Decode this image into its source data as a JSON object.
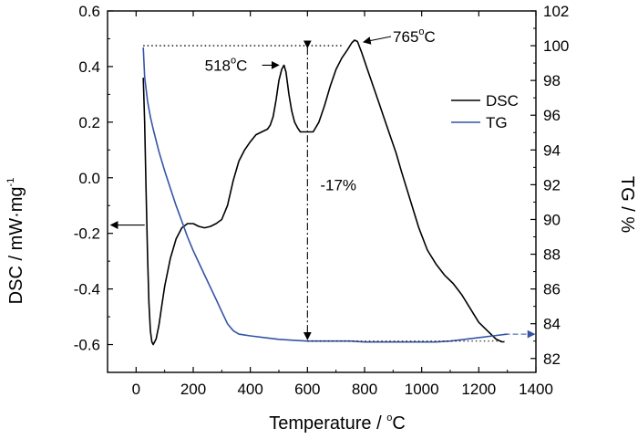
{
  "chart_data": {
    "type": "line",
    "xlabel": "Temperature / ",
    "xlabel_unit": "C",
    "xlabel_unit_sup": "o",
    "ylabel_left": "DSC / mW·mg",
    "ylabel_left_sup": "-1",
    "ylabel_right": "TG / %",
    "xlim": [
      -100,
      1400
    ],
    "ylim_left": [
      -0.7,
      0.6
    ],
    "ylim_right": [
      81.2,
      102
    ],
    "x_ticks": [
      0,
      200,
      400,
      600,
      800,
      1000,
      1200,
      1400
    ],
    "y_left_ticks": [
      -0.6,
      -0.4,
      -0.2,
      0.0,
      0.2,
      0.4,
      0.6
    ],
    "y_left_tick_labels": [
      "-0.6",
      "-0.4",
      "-0.2",
      "0.0",
      "0.2",
      "0.4",
      "0.6"
    ],
    "y_right_ticks": [
      82,
      84,
      86,
      88,
      90,
      92,
      94,
      96,
      98,
      100,
      102
    ],
    "grid": false,
    "legend_position": "top-right",
    "series": [
      {
        "name": "DSC",
        "axis": "left",
        "color": "#000000",
        "x": [
          25,
          30,
          35,
          40,
          45,
          50,
          55,
          60,
          70,
          80,
          90,
          100,
          120,
          140,
          160,
          180,
          200,
          220,
          240,
          260,
          280,
          300,
          320,
          340,
          360,
          380,
          400,
          420,
          440,
          460,
          470,
          480,
          490,
          500,
          510,
          518,
          525,
          535,
          545,
          555,
          565,
          575,
          585,
          600,
          620,
          640,
          660,
          680,
          700,
          720,
          740,
          755,
          765,
          775,
          790,
          810,
          830,
          850,
          870,
          890,
          910,
          930,
          960,
          990,
          1020,
          1050,
          1080,
          1110,
          1140,
          1170,
          1200,
          1220,
          1240,
          1250,
          1260,
          1270,
          1280,
          1290
        ],
        "y": [
          0.36,
          0.2,
          -0.05,
          -0.28,
          -0.45,
          -0.55,
          -0.59,
          -0.6,
          -0.58,
          -0.53,
          -0.46,
          -0.39,
          -0.29,
          -0.22,
          -0.18,
          -0.165,
          -0.165,
          -0.175,
          -0.18,
          -0.175,
          -0.165,
          -0.15,
          -0.1,
          -0.01,
          0.06,
          0.1,
          0.13,
          0.155,
          0.165,
          0.175,
          0.19,
          0.22,
          0.28,
          0.35,
          0.39,
          0.405,
          0.38,
          0.3,
          0.24,
          0.2,
          0.18,
          0.165,
          0.165,
          0.165,
          0.165,
          0.2,
          0.26,
          0.33,
          0.39,
          0.43,
          0.46,
          0.485,
          0.495,
          0.49,
          0.45,
          0.39,
          0.33,
          0.27,
          0.21,
          0.15,
          0.09,
          0.02,
          -0.08,
          -0.18,
          -0.26,
          -0.31,
          -0.35,
          -0.38,
          -0.42,
          -0.47,
          -0.52,
          -0.54,
          -0.56,
          -0.57,
          -0.58,
          -0.585,
          -0.59,
          -0.59
        ]
      },
      {
        "name": "TG",
        "axis": "right",
        "color": "#3554a6",
        "x": [
          25,
          30,
          40,
          50,
          60,
          80,
          100,
          120,
          140,
          160,
          180,
          200,
          220,
          240,
          260,
          280,
          300,
          320,
          340,
          360,
          380,
          400,
          450,
          500,
          550,
          600,
          650,
          700,
          750,
          800,
          850,
          900,
          950,
          1000,
          1050,
          1100,
          1150,
          1200,
          1250,
          1300
        ],
        "y": [
          99.9,
          98.2,
          96.8,
          95.9,
          95.2,
          93.9,
          92.8,
          91.8,
          90.8,
          89.9,
          89.0,
          88.2,
          87.5,
          86.8,
          86.1,
          85.4,
          84.7,
          84.0,
          83.6,
          83.4,
          83.35,
          83.3,
          83.2,
          83.1,
          83.05,
          83.0,
          83.0,
          83.0,
          83.0,
          82.95,
          82.95,
          82.95,
          82.95,
          82.95,
          82.95,
          83.0,
          83.1,
          83.2,
          83.3,
          83.4
        ]
      }
    ],
    "annotations": [
      {
        "text": "518",
        "unit": "C",
        "sup": "o",
        "x": 518,
        "y": 0.405,
        "axis": "left"
      },
      {
        "text": "765",
        "unit": "C",
        "sup": "o",
        "x": 765,
        "y": 0.495,
        "axis": "left"
      },
      {
        "text": "-17%",
        "x": 600,
        "tg_from": 100,
        "tg_to": 83
      }
    ]
  }
}
